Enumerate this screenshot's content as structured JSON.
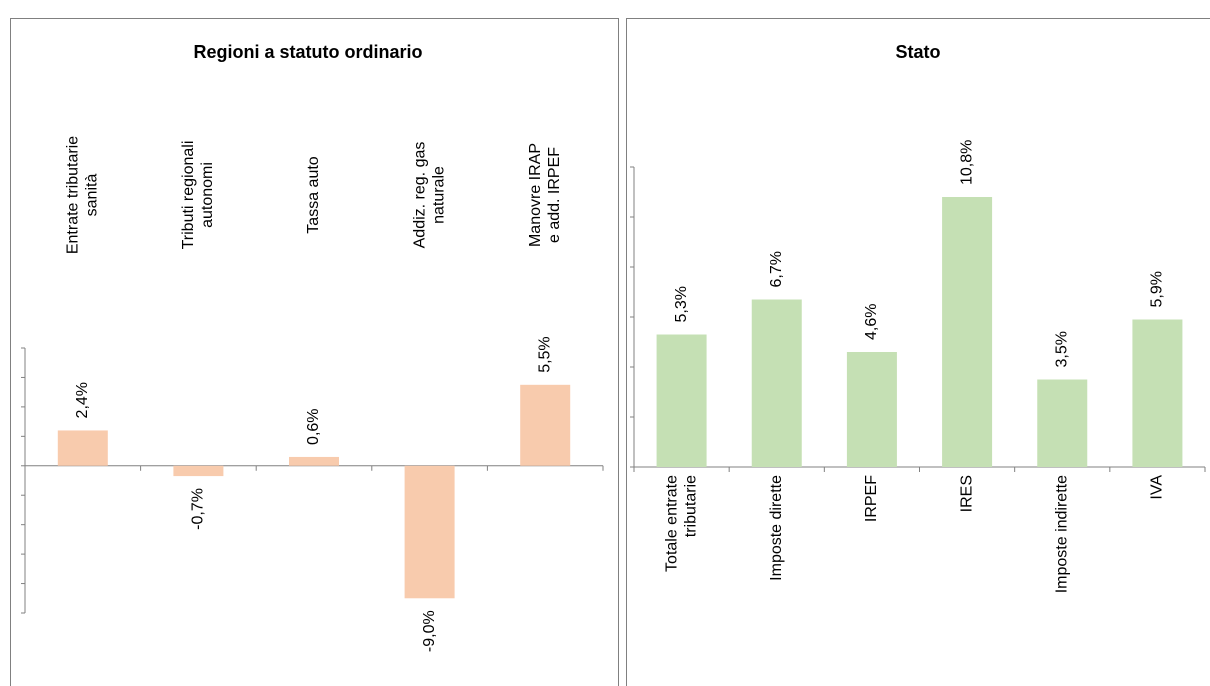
{
  "chart_data": [
    {
      "type": "bar",
      "title": "Regioni a statuto ordinario",
      "categories": [
        [
          "Entrate tributarie",
          "sanità"
        ],
        [
          "Tributi regionali",
          "autonomi"
        ],
        [
          "Tassa auto"
        ],
        [
          "Addiz. reg. gas",
          "naturale"
        ],
        [
          "Manovre  IRAP",
          "e add. IRPEF"
        ]
      ],
      "values": [
        2.4,
        -0.7,
        0.6,
        -9.0,
        5.5
      ],
      "value_labels": [
        "2,4%",
        "-0,7%",
        "0,6%",
        "-9,0%",
        "5,5%"
      ],
      "color": "#f8cbad",
      "ylim": [
        -10,
        8
      ],
      "yticks": [
        -10,
        -8,
        -6,
        -4,
        -2,
        0,
        2,
        4,
        6,
        8
      ],
      "category_position": "top"
    },
    {
      "type": "bar",
      "title": "Stato",
      "categories": [
        [
          "Totale entrate",
          "tributarie"
        ],
        [
          "Imposte dirette"
        ],
        [
          "IRPEF"
        ],
        [
          "IRES"
        ],
        [
          "Imposte indirette"
        ],
        [
          "IVA"
        ]
      ],
      "values": [
        5.3,
        6.7,
        4.6,
        10.8,
        3.5,
        5.9
      ],
      "value_labels": [
        "5,3%",
        "6,7%",
        "4,6%",
        "10,8%",
        "3,5%",
        "5,9%"
      ],
      "color": "#c5e0b4",
      "ylim": [
        0,
        12
      ],
      "yticks": [
        0,
        2,
        4,
        6,
        8,
        10,
        12
      ],
      "category_position": "bottom"
    }
  ]
}
